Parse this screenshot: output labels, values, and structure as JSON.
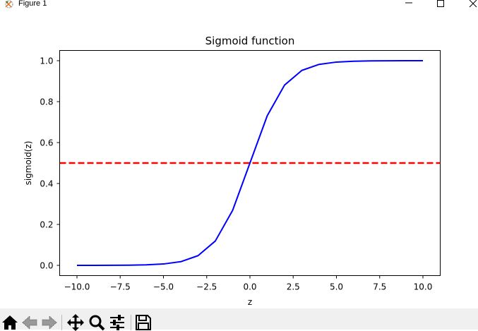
{
  "window": {
    "title": "Figure 1",
    "controls": [
      "minimize",
      "maximize",
      "close"
    ]
  },
  "toolbar": {
    "buttons": [
      {
        "name": "home",
        "icon": "home-icon"
      },
      {
        "name": "back",
        "icon": "arrow-left-icon"
      },
      {
        "name": "forward",
        "icon": "arrow-right-icon"
      },
      {
        "name": "pan",
        "icon": "move-icon"
      },
      {
        "name": "zoom",
        "icon": "magnifier-icon"
      },
      {
        "name": "configure-subplots",
        "icon": "sliders-icon"
      },
      {
        "name": "save",
        "icon": "floppy-disk-icon"
      }
    ]
  },
  "colors": {
    "curve": "#0000ff",
    "threshold": "#ff0000",
    "toolbar_bg": "#f0f0f0"
  },
  "chart_data": {
    "type": "line",
    "title": "Sigmoid function",
    "xlabel": "z",
    "ylabel": "sigmoid(z)",
    "xlim": [
      -11.0,
      11.0
    ],
    "ylim": [
      -0.05,
      1.05
    ],
    "xticks": [
      "−10.0",
      "−7.5",
      "−5.0",
      "−2.5",
      "0.0",
      "2.5",
      "5.0",
      "7.5",
      "10.0"
    ],
    "xtick_values": [
      -10,
      -7.5,
      -5,
      -2.5,
      0,
      2.5,
      5,
      7.5,
      10
    ],
    "yticks": [
      "0.0",
      "0.2",
      "0.4",
      "0.6",
      "0.8",
      "1.0"
    ],
    "ytick_values": [
      0,
      0.2,
      0.4,
      0.6,
      0.8,
      1.0
    ],
    "grid": false,
    "legend": null,
    "series": [
      {
        "name": "sigmoid",
        "color": "#0000ff",
        "style": "solid",
        "x": [
          -10,
          -9,
          -8,
          -7,
          -6,
          -5,
          -4,
          -3,
          -2,
          -1,
          0,
          1,
          2,
          3,
          4,
          5,
          6,
          7,
          8,
          9,
          10
        ],
        "values": [
          0.0,
          0.0001,
          0.0003,
          0.0009,
          0.0025,
          0.0067,
          0.018,
          0.0474,
          0.1192,
          0.2689,
          0.5,
          0.7311,
          0.8808,
          0.9526,
          0.982,
          0.9933,
          0.9975,
          0.9991,
          0.9997,
          0.9999,
          1.0
        ]
      }
    ],
    "annotations": [
      {
        "type": "hline",
        "y": 0.5,
        "color": "#ff0000",
        "style": "dashed"
      }
    ]
  }
}
